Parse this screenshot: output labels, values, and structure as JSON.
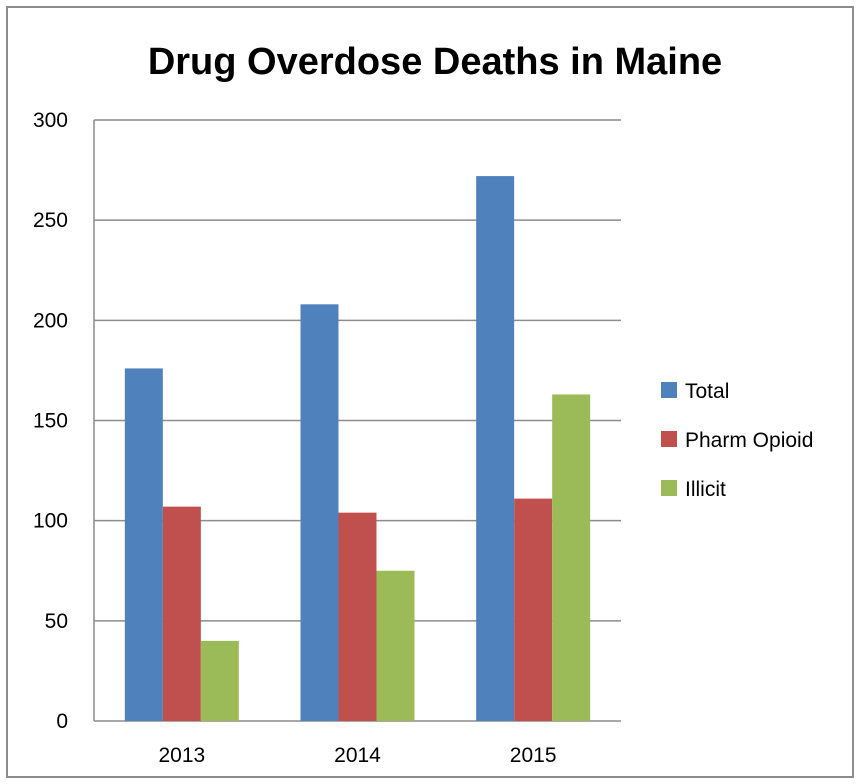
{
  "chart_data": {
    "type": "bar",
    "title": "Drug Overdose Deaths in Maine",
    "categories": [
      "2013",
      "2014",
      "2015"
    ],
    "series": [
      {
        "name": "Total",
        "values": [
          176,
          208,
          272
        ],
        "color": "#4f81bd"
      },
      {
        "name": "Pharm Opioid",
        "values": [
          107,
          104,
          111
        ],
        "color": "#c0504d"
      },
      {
        "name": "Illicit",
        "values": [
          40,
          75,
          163
        ],
        "color": "#9bbb59"
      }
    ],
    "ylim": [
      0,
      300
    ],
    "yticks": [
      "0",
      "50",
      "100",
      "150",
      "200",
      "250",
      "300"
    ],
    "grid": true,
    "legend_position": "right"
  }
}
